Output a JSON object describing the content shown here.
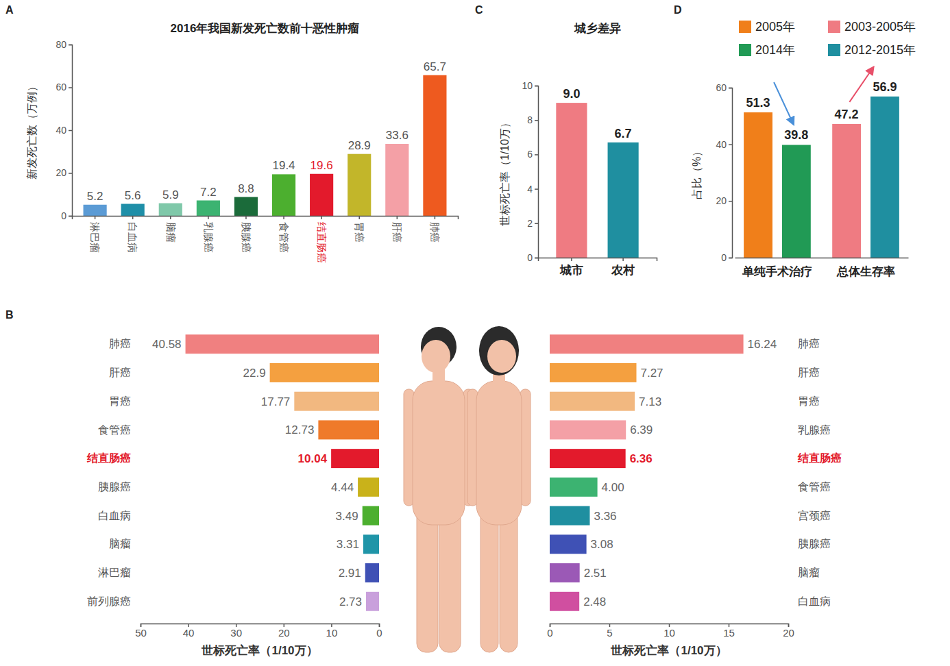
{
  "chart_data": [
    {
      "panel": "A",
      "type": "bar",
      "title": "2016年我国新发死亡数前十恶性肿瘤",
      "y_label": "新发死亡数（万例）",
      "categories": [
        "淋巴瘤",
        "白血病",
        "脑瘤",
        "乳腺癌",
        "胰腺癌",
        "食管癌",
        "结直肠癌",
        "胃癌",
        "肝癌",
        "肺癌"
      ],
      "values": [
        5.2,
        5.6,
        5.9,
        7.2,
        8.8,
        19.4,
        19.6,
        28.9,
        33.6,
        65.7
      ],
      "colors": [
        "#5b9bd5",
        "#1f8fa8",
        "#7fc8a9",
        "#3cb371",
        "#1b6b3a",
        "#4caf2f",
        "#e31a2c",
        "#c2b62a",
        "#f4a0a6",
        "#ee5a1f"
      ],
      "ylim": [
        0,
        80
      ],
      "yticks": [
        0,
        20,
        40,
        60,
        80
      ],
      "data_labels": true
    },
    {
      "panel": "B",
      "type": "bar",
      "orientation": "horizontal",
      "x_label": "世标死亡率（1/10万）",
      "categories": [
        "肺癌",
        "肝癌",
        "胃癌",
        "食管癌",
        "结直肠癌",
        "胰腺癌",
        "白血病",
        "脑瘤",
        "淋巴瘤",
        "前列腺癌"
      ],
      "values": [
        40.58,
        22.9,
        17.77,
        12.73,
        10.04,
        4.44,
        3.49,
        3.31,
        2.91,
        2.73
      ],
      "colors": [
        "#f08080",
        "#f4a040",
        "#f2b880",
        "#ef7a2a",
        "#e31a2c",
        "#c9b21a",
        "#4caf2f",
        "#1f95a8",
        "#3f51b5",
        "#c9a0dc"
      ],
      "xlim": [
        50,
        0
      ],
      "xticks": [
        0,
        10,
        20,
        30,
        40,
        50
      ],
      "data_labels": true
    },
    {
      "type": "bar",
      "orientation": "horizontal",
      "x_label": "世标死亡率（1/10万）",
      "categories": [
        "肺癌",
        "肝癌",
        "胃癌",
        "乳腺癌",
        "结直肠癌",
        "食管癌",
        "宫颈癌",
        "胰腺癌",
        "脑瘤",
        "白血病"
      ],
      "values": [
        16.24,
        7.27,
        7.13,
        6.39,
        6.36,
        4.0,
        3.36,
        3.08,
        2.51,
        2.48
      ],
      "value_labels": [
        "16.24",
        "7.27",
        "7.13",
        "6.39",
        "6.36",
        "4.00",
        "3.36",
        "3.08",
        "2.51",
        "2.48"
      ],
      "colors": [
        "#f08080",
        "#f4a040",
        "#f2b880",
        "#f4a0a6",
        "#e31a2c",
        "#3cb371",
        "#1f8fa0",
        "#3f51b5",
        "#9b59b6",
        "#d04fa0"
      ],
      "xlim": [
        0,
        20
      ],
      "xticks": [
        0,
        5,
        10,
        15,
        20
      ],
      "data_labels": true
    },
    {
      "panel": "C",
      "type": "bar",
      "title": "城乡差异",
      "y_label": "世标死亡率（1/10万）",
      "categories": [
        "城市",
        "农村"
      ],
      "values": [
        9.0,
        6.7
      ],
      "value_labels": [
        "9.0",
        "6.7"
      ],
      "colors": [
        "#ef7b82",
        "#1f8fa0"
      ],
      "ylim": [
        0,
        10
      ],
      "yticks": [
        0,
        2,
        4,
        6,
        8,
        10
      ],
      "data_labels": true
    },
    {
      "panel": "D",
      "type": "bar",
      "y_label": "占比（%）",
      "categories": [
        "单纯手术治疗",
        "总体生存率"
      ],
      "series": [
        {
          "name": "2005年",
          "color": "#f07f1a",
          "values": [
            51.3,
            null
          ]
        },
        {
          "name": "2014年",
          "color": "#219a55",
          "values": [
            39.8,
            null
          ]
        },
        {
          "name": "2003-2005年",
          "color": "#ef7b82",
          "values": [
            null,
            47.2
          ]
        },
        {
          "name": "2012-2015年",
          "color": "#1f8fa0",
          "values": [
            null,
            56.9
          ]
        }
      ],
      "ylim": [
        0,
        60
      ],
      "yticks": [
        0,
        20,
        40,
        60
      ],
      "legend": "top",
      "data_labels": true
    }
  ]
}
